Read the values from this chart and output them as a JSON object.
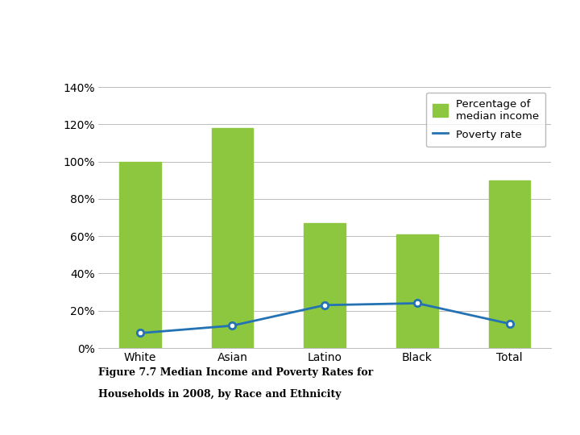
{
  "categories": [
    "White",
    "Asian",
    "Latino",
    "Black",
    "Total"
  ],
  "bar_values": [
    100,
    118,
    67,
    61,
    90
  ],
  "poverty_values": [
    8,
    12,
    23,
    24,
    13
  ],
  "bar_color": "#8dc63f",
  "line_color": "#2272b4",
  "marker_color": "white",
  "marker_edge_color": "#2272b4",
  "ylim": [
    0,
    140
  ],
  "yticks": [
    0,
    20,
    40,
    60,
    80,
    100,
    120,
    140
  ],
  "ytick_labels": [
    "0%",
    "20%",
    "40%",
    "60%",
    "80%",
    "100%",
    "120%",
    "140%"
  ],
  "legend_bar_label": "Percentage of\nmedian income",
  "legend_line_label": "Poverty rate",
  "caption_line1": "Figure 7.7 Median Income and Poverty Rates for",
  "caption_line2": "Households in 2008, by Race and Ethnicity",
  "background_color": "#ffffff",
  "grid_color": "#bbbbbb",
  "bar_width": 0.45
}
